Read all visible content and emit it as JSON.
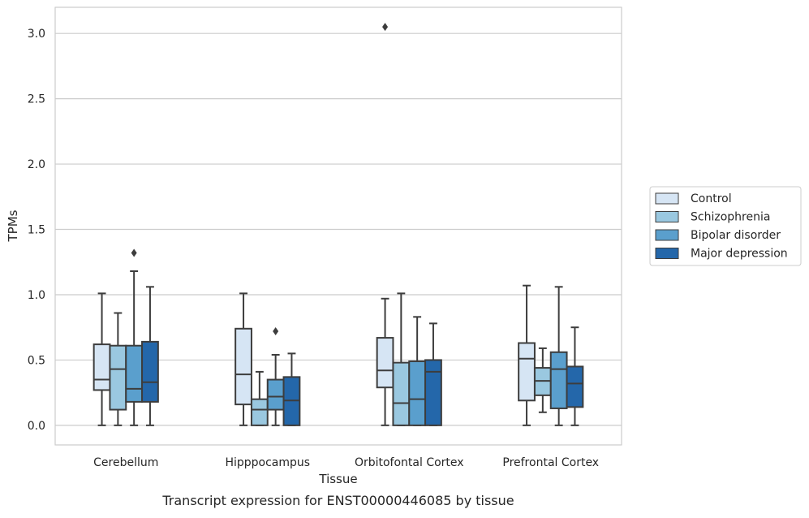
{
  "chart_data": {
    "type": "box",
    "xlabel": "Tissue",
    "ylabel": "TPMs",
    "caption": "Transcript expression for ENST00000446085 by tissue",
    "ylim": [
      -0.15,
      3.2
    ],
    "yticks": [
      0.0,
      0.5,
      1.0,
      1.5,
      2.0,
      2.5,
      3.0
    ],
    "ytick_labels": [
      "0.0",
      "0.5",
      "1.0",
      "1.5",
      "2.0",
      "2.5",
      "3.0"
    ],
    "grid": "horizontal",
    "legend_position": "right",
    "categories": [
      "Cerebellum",
      "Hipppocampus",
      "Orbitofontal Cortex",
      "Prefrontal Cortex"
    ],
    "series": [
      {
        "name": "Control",
        "color": "#d6e5f4",
        "boxes": [
          {
            "whislo": 0.0,
            "q1": 0.27,
            "med": 0.35,
            "q3": 0.62,
            "whishi": 1.01,
            "fliers": []
          },
          {
            "whislo": 0.0,
            "q1": 0.16,
            "med": 0.39,
            "q3": 0.74,
            "whishi": 1.01,
            "fliers": []
          },
          {
            "whislo": 0.0,
            "q1": 0.29,
            "med": 0.42,
            "q3": 0.67,
            "whishi": 0.97,
            "fliers": [
              3.05
            ]
          },
          {
            "whislo": 0.0,
            "q1": 0.19,
            "med": 0.51,
            "q3": 0.63,
            "whishi": 1.07,
            "fliers": []
          }
        ]
      },
      {
        "name": "Schizophrenia",
        "color": "#9ac8e0",
        "boxes": [
          {
            "whislo": 0.0,
            "q1": 0.12,
            "med": 0.43,
            "q3": 0.61,
            "whishi": 0.86,
            "fliers": []
          },
          {
            "whislo": 0.0,
            "q1": 0.0,
            "med": 0.12,
            "q3": 0.2,
            "whishi": 0.41,
            "fliers": []
          },
          {
            "whislo": 0.0,
            "q1": 0.0,
            "med": 0.17,
            "q3": 0.48,
            "whishi": 1.01,
            "fliers": []
          },
          {
            "whislo": 0.1,
            "q1": 0.23,
            "med": 0.34,
            "q3": 0.44,
            "whishi": 0.59,
            "fliers": []
          }
        ]
      },
      {
        "name": "Bipolar disorder",
        "color": "#5a9fcd",
        "boxes": [
          {
            "whislo": 0.0,
            "q1": 0.18,
            "med": 0.28,
            "q3": 0.61,
            "whishi": 1.18,
            "fliers": [
              1.32
            ]
          },
          {
            "whislo": 0.0,
            "q1": 0.12,
            "med": 0.22,
            "q3": 0.35,
            "whishi": 0.54,
            "fliers": [
              0.72
            ]
          },
          {
            "whislo": 0.0,
            "q1": 0.0,
            "med": 0.2,
            "q3": 0.49,
            "whishi": 0.83,
            "fliers": []
          },
          {
            "whislo": 0.0,
            "q1": 0.13,
            "med": 0.43,
            "q3": 0.56,
            "whishi": 1.06,
            "fliers": []
          }
        ]
      },
      {
        "name": "Major depression",
        "color": "#2467aa",
        "boxes": [
          {
            "whislo": 0.0,
            "q1": 0.18,
            "med": 0.33,
            "q3": 0.64,
            "whishi": 1.06,
            "fliers": []
          },
          {
            "whislo": 0.0,
            "q1": 0.0,
            "med": 0.19,
            "q3": 0.37,
            "whishi": 0.55,
            "fliers": []
          },
          {
            "whislo": 0.0,
            "q1": 0.0,
            "med": 0.41,
            "q3": 0.5,
            "whishi": 0.78,
            "fliers": []
          },
          {
            "whislo": 0.0,
            "q1": 0.14,
            "med": 0.32,
            "q3": 0.45,
            "whishi": 0.75,
            "fliers": []
          }
        ]
      }
    ]
  }
}
